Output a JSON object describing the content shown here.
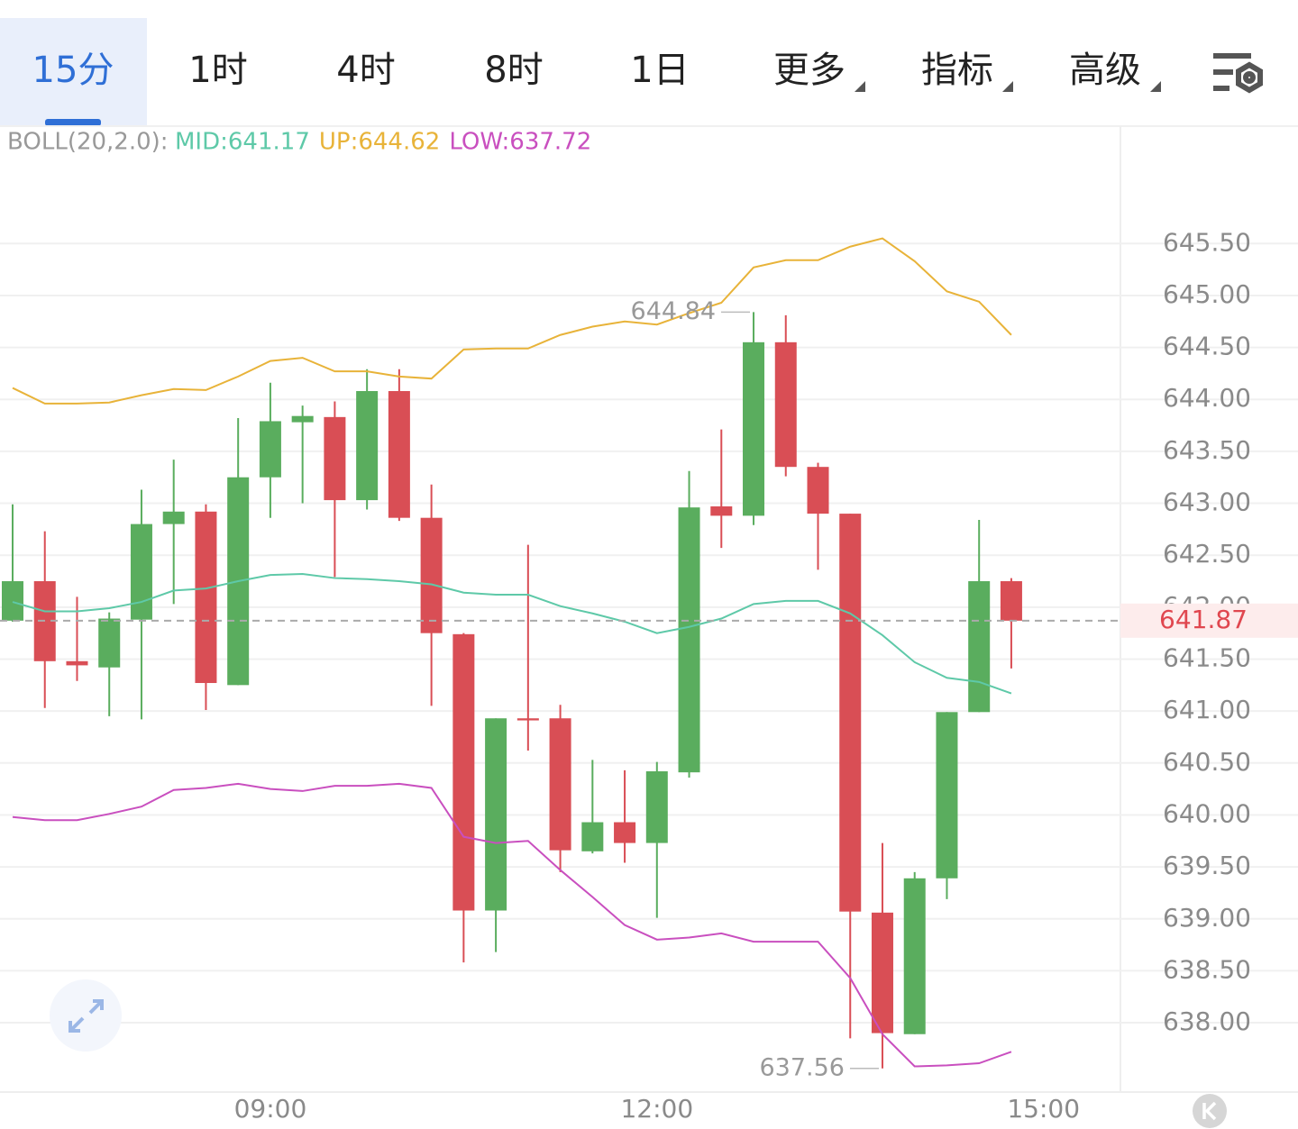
{
  "tabs": [
    "15分",
    "1时",
    "4时",
    "8时",
    "1日",
    "更多",
    "指标",
    "高级"
  ],
  "chart_data": {
    "type": "candlestick",
    "indicator_label": "BOLL(20,2.0):",
    "categories": [
      null,
      null,
      null,
      null,
      null,
      null,
      null,
      null,
      "09:00",
      null,
      null,
      null,
      null,
      null,
      null,
      null,
      null,
      null,
      null,
      null,
      "12:00",
      null,
      null,
      null,
      null,
      null,
      null,
      null,
      null,
      null,
      null,
      null,
      "15:00"
    ],
    "open": [
      641.87,
      642.25,
      641.48,
      641.42,
      641.88,
      642.8,
      642.92,
      641.25,
      643.25,
      643.78,
      643.83,
      643.03,
      644.08,
      642.86,
      641.74,
      639.08,
      640.93,
      640.93,
      639.65,
      639.93,
      639.73,
      640.41,
      642.97,
      642.88,
      644.55,
      643.35,
      642.9,
      639.06,
      637.89,
      639.39,
      640.99,
      642.25,
      null
    ],
    "high": [
      642.99,
      642.73,
      642.1,
      641.95,
      643.13,
      643.42,
      642.99,
      643.82,
      644.16,
      643.94,
      643.98,
      644.29,
      644.29,
      643.18,
      641.75,
      640.93,
      642.6,
      641.06,
      640.53,
      640.43,
      640.51,
      643.31,
      643.71,
      644.84,
      644.81,
      643.39,
      642.9,
      639.73,
      639.45,
      640.99,
      642.84,
      642.28,
      null
    ],
    "low": [
      641.86,
      641.03,
      641.29,
      640.95,
      640.92,
      642.03,
      641.01,
      641.25,
      642.86,
      643.0,
      642.29,
      642.94,
      642.83,
      641.05,
      638.58,
      638.68,
      640.62,
      639.45,
      639.63,
      639.54,
      639.01,
      640.36,
      642.57,
      642.79,
      643.26,
      642.36,
      637.85,
      637.56,
      637.89,
      639.19,
      640.99,
      641.41,
      null
    ],
    "close": [
      642.25,
      641.48,
      641.44,
      641.89,
      642.8,
      642.92,
      641.27,
      643.25,
      643.79,
      643.84,
      643.03,
      644.08,
      642.86,
      641.75,
      639.08,
      640.93,
      640.91,
      639.66,
      639.93,
      639.73,
      640.42,
      642.96,
      642.88,
      644.55,
      643.35,
      642.9,
      639.07,
      637.9,
      639.39,
      640.99,
      642.25,
      641.87,
      null
    ],
    "up_color": "#5aad5e",
    "down_color": "#d94e55",
    "series": [
      {
        "name": "MID:641.17",
        "color": "#5ec9a8",
        "values": [
          642.05,
          641.96,
          641.96,
          641.99,
          642.05,
          642.16,
          642.18,
          642.25,
          642.31,
          642.32,
          642.28,
          642.27,
          642.25,
          642.22,
          642.14,
          642.12,
          642.12,
          642.01,
          641.94,
          641.86,
          641.75,
          641.81,
          641.89,
          642.03,
          642.06,
          642.06,
          641.94,
          641.73,
          641.47,
          641.32,
          641.28,
          641.17,
          null
        ]
      },
      {
        "name": "UP:644.62",
        "color": "#e8b339",
        "values": [
          644.11,
          643.96,
          643.96,
          643.97,
          644.04,
          644.1,
          644.09,
          644.22,
          644.37,
          644.4,
          644.27,
          644.27,
          644.22,
          644.2,
          644.48,
          644.49,
          644.49,
          644.62,
          644.7,
          644.75,
          644.72,
          644.83,
          644.93,
          645.27,
          645.34,
          645.34,
          645.47,
          645.55,
          645.33,
          645.04,
          644.94,
          644.62,
          null
        ]
      },
      {
        "name": "LOW:637.72",
        "color": "#c94fbf",
        "values": [
          639.98,
          639.95,
          639.95,
          640.01,
          640.08,
          640.24,
          640.26,
          640.3,
          640.25,
          640.23,
          640.28,
          640.28,
          640.3,
          640.26,
          639.79,
          639.73,
          639.75,
          639.47,
          639.21,
          638.94,
          638.8,
          638.82,
          638.86,
          638.78,
          638.78,
          638.78,
          638.43,
          637.89,
          637.58,
          637.59,
          637.61,
          637.72,
          null
        ]
      }
    ],
    "ylim": [
      637.35,
      646.63
    ],
    "yticks": [
      {
        "value": 638,
        "label": "638.00"
      },
      {
        "value": 638.5,
        "label": "638.50"
      },
      {
        "value": 639,
        "label": "639.00"
      },
      {
        "value": 639.5,
        "label": "639.50"
      },
      {
        "value": 640,
        "label": "640.00"
      },
      {
        "value": 640.5,
        "label": "640.50"
      },
      {
        "value": 641,
        "label": "641.00"
      },
      {
        "value": 641.5,
        "label": "641.50"
      },
      {
        "value": 642,
        "label": "642.00"
      },
      {
        "value": 642.5,
        "label": "642.50"
      },
      {
        "value": 643,
        "label": "643.00"
      },
      {
        "value": 643.5,
        "label": "643.50"
      },
      {
        "value": 644,
        "label": "644.00"
      },
      {
        "value": 644.5,
        "label": "644.50"
      },
      {
        "value": 645,
        "label": "645.00"
      },
      {
        "value": 645.5,
        "label": "645.50"
      }
    ],
    "grid": true,
    "last_price_color": "#e0474f"
  }
}
